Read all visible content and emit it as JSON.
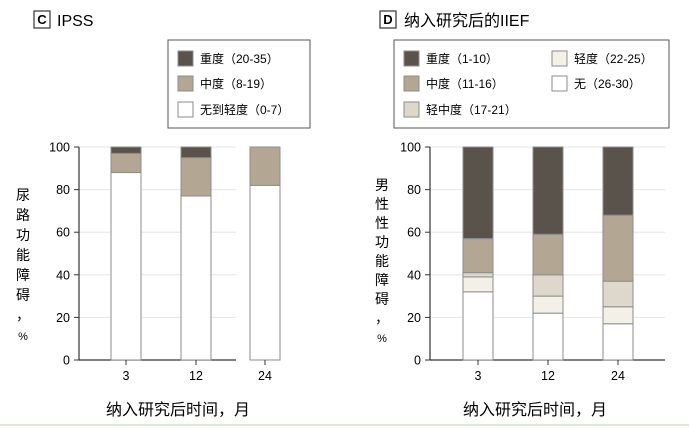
{
  "colors": {
    "severe": "#5a534b",
    "moderate": "#b3a794",
    "mild_moderate": "#ddd7cc",
    "mild": "#f2f0e7",
    "none": "#ffffff",
    "stroke": "#8c8c8c",
    "axis": "#333333",
    "grid": "#e6e6e6"
  },
  "chart_data": [
    {
      "type": "bar",
      "stacked": true,
      "panel_letter": "C",
      "title": "IPSS",
      "categories": [
        "3",
        "12",
        "24"
      ],
      "xlabel": "纳入研究后时间，月",
      "ylabel": "尿路功能障碍，%",
      "ylim": [
        0,
        100
      ],
      "yticks": [
        0,
        20,
        40,
        60,
        80,
        100
      ],
      "grid": true,
      "legend_position": "top",
      "series": [
        {
          "name": "无到轻度（0-7）",
          "key": "none",
          "values": [
            88,
            77,
            82
          ]
        },
        {
          "name": "中度（8-19）",
          "key": "moderate",
          "values": [
            9,
            18,
            18
          ]
        },
        {
          "name": "重度（20-35）",
          "key": "severe",
          "values": [
            3,
            5,
            0
          ]
        }
      ],
      "legend_order": [
        2,
        1,
        0
      ]
    },
    {
      "type": "bar",
      "stacked": true,
      "panel_letter": "D",
      "title": "纳入研究后的IIEF",
      "categories": [
        "3",
        "12",
        "24"
      ],
      "xlabel": "纳入研究后时间，月",
      "ylabel": "男性性功能障碍，%",
      "ylim": [
        0,
        100
      ],
      "yticks": [
        0,
        20,
        40,
        60,
        80,
        100
      ],
      "grid": true,
      "legend_position": "top",
      "series": [
        {
          "name": "无（26-30）",
          "key": "none",
          "values": [
            32,
            22,
            17
          ]
        },
        {
          "name": "轻度（22-25）",
          "key": "mild",
          "values": [
            7,
            8,
            8
          ]
        },
        {
          "name": "轻中度（17-21）",
          "key": "mild_moderate",
          "values": [
            2,
            10,
            12
          ]
        },
        {
          "name": "中度（11-16）",
          "key": "moderate",
          "values": [
            16,
            19,
            31
          ]
        },
        {
          "name": "重度（1-10）",
          "key": "severe",
          "values": [
            43,
            41,
            32
          ]
        }
      ],
      "legend_order": [
        4,
        3,
        2,
        1,
        0
      ]
    }
  ]
}
